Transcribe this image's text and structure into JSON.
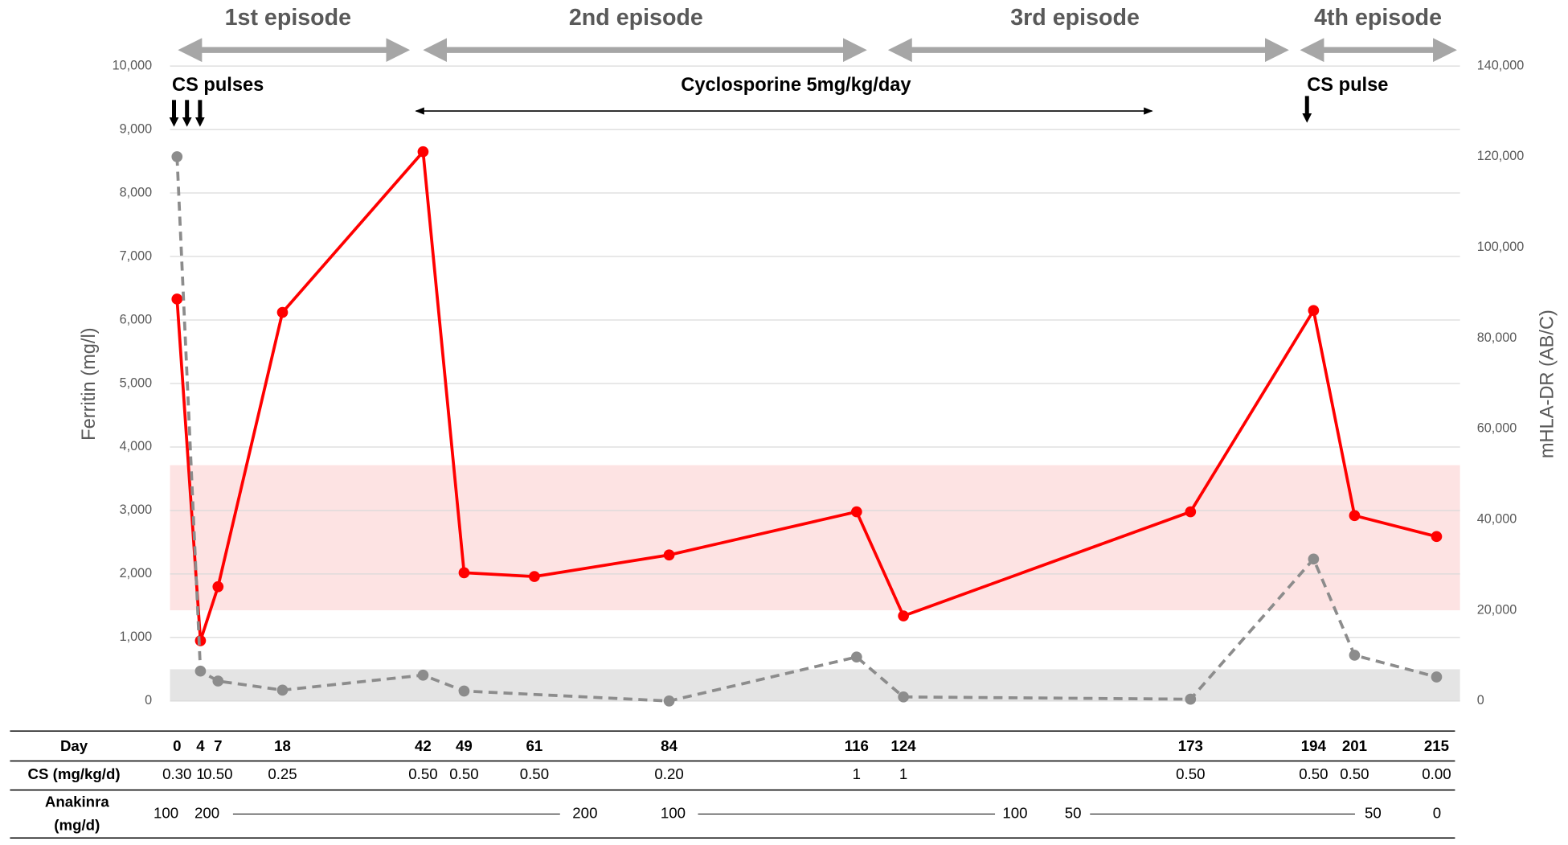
{
  "chart_data": {
    "type": "line",
    "x": [
      0,
      4,
      7,
      18,
      42,
      49,
      61,
      84,
      116,
      124,
      173,
      194,
      201,
      215
    ],
    "xlim": [
      -1.2,
      219
    ],
    "series": [
      {
        "color": "#ff0000",
        "dashed": false,
        "axis": "y",
        "values": [
          6330,
          950,
          1800,
          6120,
          8650,
          2020,
          1960,
          2300,
          2980,
          1340,
          2980,
          6150,
          2920,
          2590
        ]
      },
      {
        "color": "#8c8c8c",
        "dashed": true,
        "axis": "y2",
        "values": [
          120000,
          6600,
          4400,
          2400,
          5700,
          2200,
          null,
          0,
          9700,
          900,
          400,
          31300,
          10100,
          5300
        ]
      }
    ],
    "ylim": [
      0,
      10000
    ],
    "yticks": [
      0,
      {
        "value": 1000,
        "label": "1,000"
      },
      {
        "value": 2000,
        "label": "2,000"
      },
      {
        "value": 3000,
        "label": "3,000"
      },
      {
        "value": 4000,
        "label": "4,000"
      },
      {
        "value": 5000,
        "label": "5,000"
      },
      {
        "value": 6000,
        "label": "6,000"
      },
      {
        "value": 7000,
        "label": "7,000"
      },
      {
        "value": 8000,
        "label": "8,000"
      },
      {
        "value": 9000,
        "label": "9,000"
      },
      {
        "value": 10000,
        "label": "10,000"
      }
    ],
    "y2lim": [
      0,
      140000
    ],
    "y2ticks": [
      0,
      {
        "value": 20000,
        "label": "20,000"
      },
      {
        "value": 40000,
        "label": "40,000"
      },
      {
        "value": 60000,
        "label": "60,000"
      },
      {
        "value": 80000,
        "label": "80,000"
      },
      {
        "value": 100000,
        "label": "100,000"
      },
      {
        "value": 120000,
        "label": "120,000"
      },
      {
        "value": 140000,
        "label": "140,000"
      }
    ],
    "ylabel": "Ferritin (mg/l)",
    "y2label": "mHLA-DR (AB/C)",
    "grid": true,
    "bands": [
      {
        "axis": "y2",
        "range": [
          20000,
          52000
        ],
        "color": "#fde3e3"
      },
      {
        "axis": "y",
        "range": [
          0,
          500
        ],
        "color": "#e4e4e4"
      }
    ],
    "episodes": [
      "1st episode",
      "2nd episode",
      "3rd episode",
      "4th episode"
    ],
    "annotations": [
      "CS pulses",
      "Cyclosporine 5mg/kg/day",
      "CS pulse"
    ],
    "table": {
      "row_labels": [
        "Day",
        "CS (mg/kg/d)",
        [
          "Anakinra",
          "(mg/d)"
        ]
      ],
      "cs": [
        "0.30",
        "1",
        "0.50",
        "0.25",
        "0.50",
        "0.50",
        "0.50",
        "0.20",
        "1",
        "1",
        "0.50",
        "0.50",
        "0.50",
        "0.00"
      ],
      "anakinra": [
        "100",
        "200",
        "200",
        "100",
        "100",
        "50",
        "50",
        "0"
      ]
    }
  }
}
